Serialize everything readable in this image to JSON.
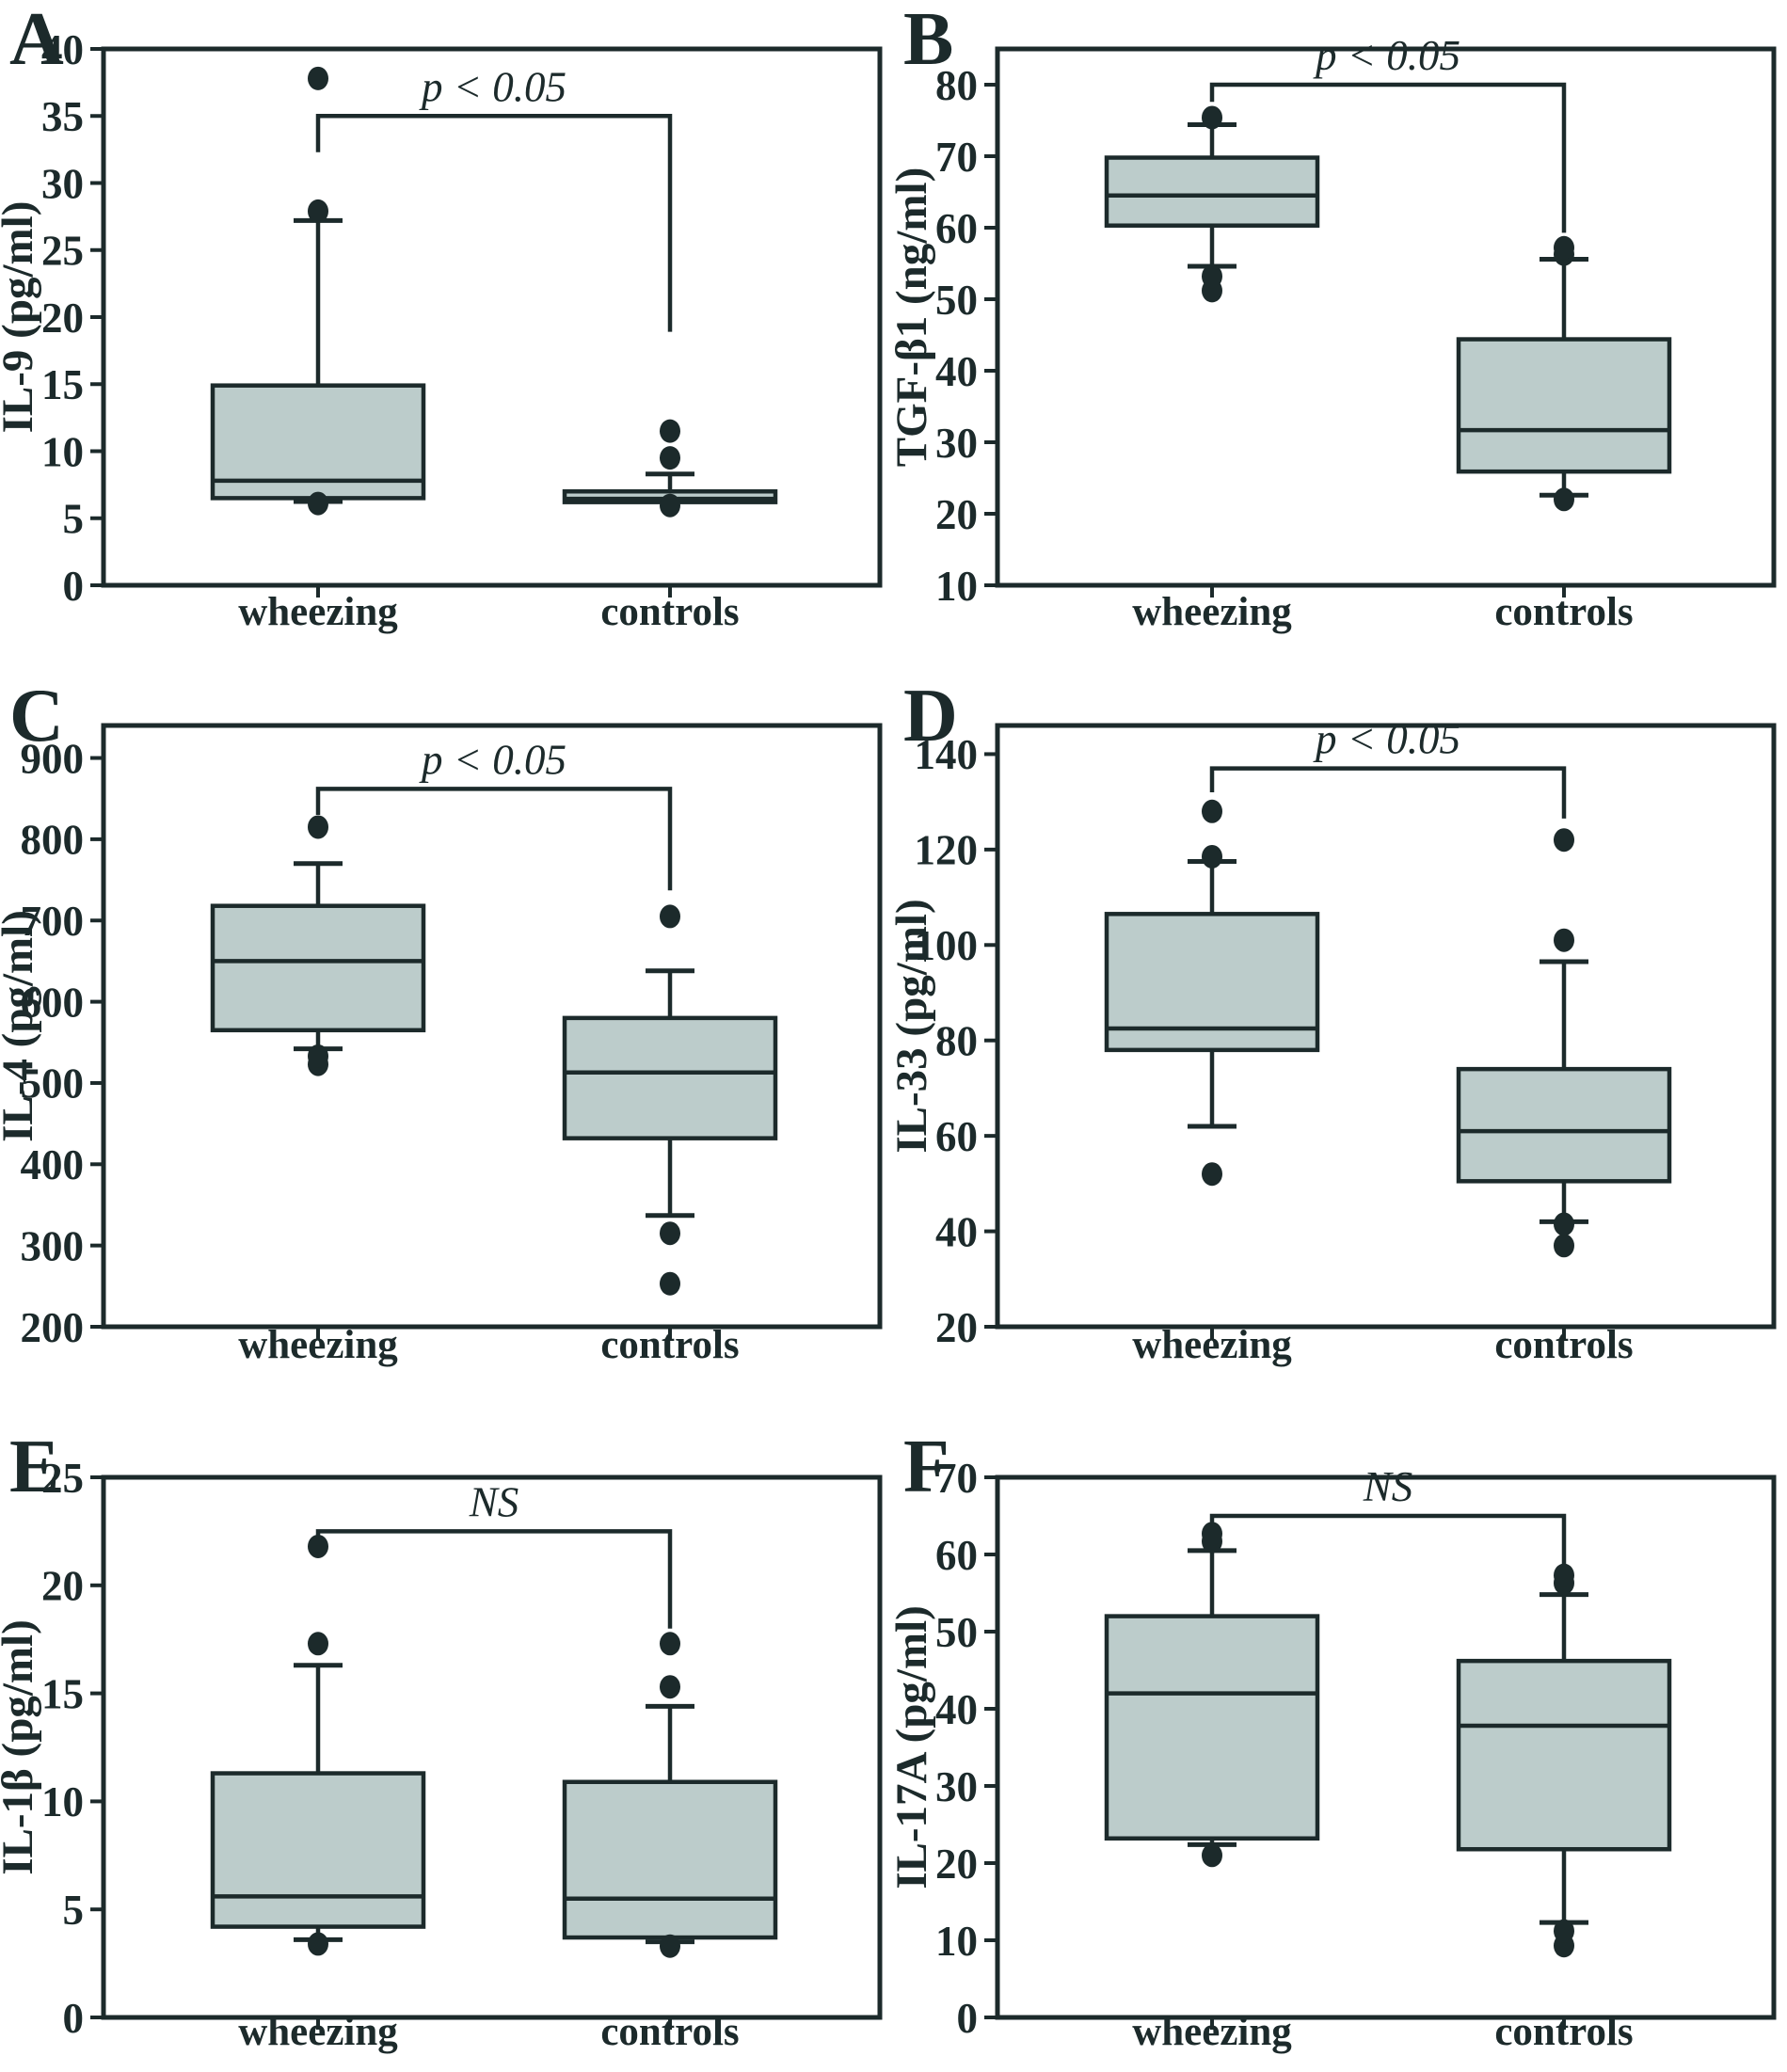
{
  "figure": {
    "background": "#ffffff",
    "line_color": "#1c2a2b",
    "box_fill": "#bccccb",
    "groups": [
      "wheezing",
      "controls"
    ]
  },
  "chart_data": [
    {
      "type": "box",
      "letter": "A",
      "ylabel": "IL-9 (pg/ml)",
      "ymin": 0,
      "ymax_draw": 40,
      "ticks": [
        0,
        5,
        10,
        15,
        20,
        25,
        30,
        35,
        40
      ],
      "significance": {
        "label": "p < 0.05",
        "level": 35,
        "left_end": 32.3,
        "right_end": 18.9
      },
      "boxes": [
        {
          "group": "wheezing",
          "q1": 6.5,
          "median": 7.8,
          "q3": 14.9,
          "whisker_low": 6.25,
          "whisker_high": 27.2,
          "outliers": [
            6.1,
            27.9,
            37.8
          ]
        },
        {
          "group": "controls",
          "q1": 6.2,
          "median": 6.45,
          "q3": 7.0,
          "whisker_low": null,
          "whisker_high": 8.3,
          "outliers": [
            5.95,
            9.5,
            11.5
          ]
        }
      ]
    },
    {
      "type": "box",
      "letter": "B",
      "ylabel": "TGF-β1 (ng/ml)",
      "ymin": 10,
      "ymax_draw": 85,
      "ticks": [
        10,
        20,
        30,
        40,
        50,
        60,
        70,
        80
      ],
      "significance": {
        "label": "p < 0.05",
        "level": 80,
        "left_end": 77.6,
        "right_end": 59.3
      },
      "boxes": [
        {
          "group": "wheezing",
          "q1": 60.3,
          "median": 64.5,
          "q3": 69.8,
          "whisker_low": 54.6,
          "whisker_high": 74.4,
          "outliers": [
            51.2,
            53.2,
            75.4
          ]
        },
        {
          "group": "controls",
          "q1": 25.9,
          "median": 31.7,
          "q3": 44.4,
          "whisker_low": 22.6,
          "whisker_high": 55.6,
          "outliers": [
            22.0,
            56.3,
            57.2
          ]
        }
      ]
    },
    {
      "type": "box",
      "letter": "C",
      "ylabel": "IL-4 (pg/ml)",
      "ymin": 200,
      "ymax_draw": 940,
      "ticks": [
        200,
        300,
        400,
        500,
        600,
        700,
        800,
        900
      ],
      "significance": {
        "label": "p < 0.05",
        "level": 862,
        "left_end": 830,
        "right_end": 737
      },
      "boxes": [
        {
          "group": "wheezing",
          "q1": 565,
          "median": 650,
          "q3": 718,
          "whisker_low": 542,
          "whisker_high": 770,
          "outliers": [
            523,
            533,
            815
          ]
        },
        {
          "group": "controls",
          "q1": 432,
          "median": 513,
          "q3": 580,
          "whisker_low": 337,
          "whisker_high": 638,
          "outliers": [
            253,
            315,
            705
          ]
        }
      ]
    },
    {
      "type": "box",
      "letter": "D",
      "ylabel": "IL-33 (pg/ml)",
      "ymin": 20,
      "ymax_draw": 146,
      "ticks": [
        20,
        40,
        60,
        80,
        100,
        120,
        140
      ],
      "significance": {
        "label": "p < 0.05",
        "level": 137,
        "left_end": 132,
        "right_end": 126.5
      },
      "boxes": [
        {
          "group": "wheezing",
          "q1": 78,
          "median": 82.5,
          "q3": 106.5,
          "whisker_low": 62,
          "whisker_high": 117.5,
          "outliers": [
            52,
            118.5,
            128
          ]
        },
        {
          "group": "controls",
          "q1": 50.5,
          "median": 61,
          "q3": 74,
          "whisker_low": 42,
          "whisker_high": 96.5,
          "outliers": [
            37,
            41.5,
            101,
            122
          ]
        }
      ]
    },
    {
      "type": "box",
      "letter": "E",
      "ylabel": "IL-1β (pg/ml)",
      "ymin": 0,
      "ymax_draw": 25,
      "ticks": [
        0,
        5,
        10,
        15,
        20,
        25
      ],
      "significance": {
        "label": "NS",
        "level": 22.5,
        "left_end": 22.15,
        "right_end": 18.0
      },
      "boxes": [
        {
          "group": "wheezing",
          "q1": 4.2,
          "median": 5.6,
          "q3": 11.3,
          "whisker_low": 3.6,
          "whisker_high": 16.3,
          "outliers": [
            3.4,
            17.3,
            21.8
          ]
        },
        {
          "group": "controls",
          "q1": 3.7,
          "median": 5.5,
          "q3": 10.9,
          "whisker_low": 3.5,
          "whisker_high": 14.4,
          "outliers": [
            3.3,
            15.3,
            17.3
          ]
        }
      ]
    },
    {
      "type": "box",
      "letter": "F",
      "ylabel": "IL-17A (pg/ml)",
      "ymin": 0,
      "ymax_draw": 70,
      "ticks": [
        0,
        10,
        20,
        30,
        40,
        50,
        60,
        70
      ],
      "significance": {
        "label": "NS",
        "level": 65,
        "left_end": 63.5,
        "right_end": 58.6
      },
      "boxes": [
        {
          "group": "wheezing",
          "q1": 23.2,
          "median": 42,
          "q3": 52,
          "whisker_low": 22.4,
          "whisker_high": 60.5,
          "outliers": [
            21,
            61.7,
            62.7
          ]
        },
        {
          "group": "controls",
          "q1": 21.8,
          "median": 37.8,
          "q3": 46.2,
          "whisker_low": 12.3,
          "whisker_high": 54.8,
          "outliers": [
            9.3,
            11.2,
            56.3,
            57.3
          ]
        }
      ]
    }
  ]
}
